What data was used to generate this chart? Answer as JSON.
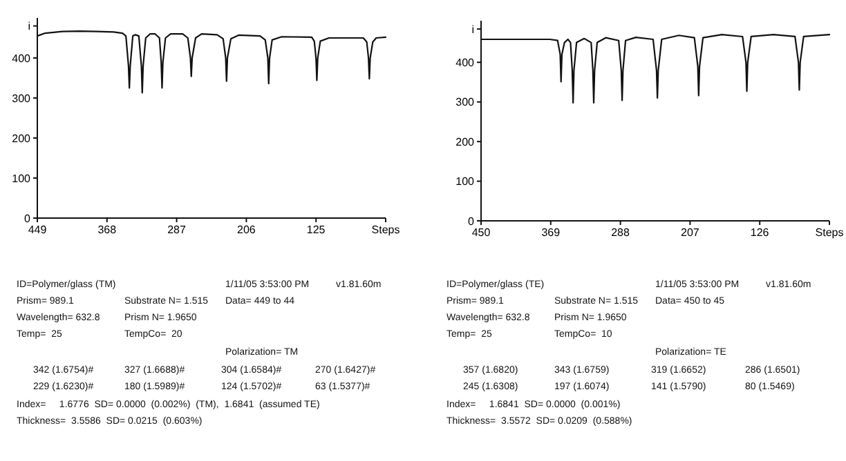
{
  "chart_data": [
    {
      "type": "line",
      "xlim": [
        449,
        44
      ],
      "xticks": [
        449,
        368,
        287,
        206,
        125,
        {
          "value": 44,
          "label": "Steps"
        }
      ],
      "ylim": [
        0,
        500
      ],
      "yticks": [
        0,
        100,
        200,
        300,
        400,
        {
          "value": 480,
          "label": "i"
        }
      ],
      "series": [
        {
          "color": "#111111",
          "x": [
            449,
            440,
            420,
            400,
            380,
            360,
            350,
            346,
            343,
            342,
            341,
            338,
            335,
            331,
            328,
            327,
            326,
            323,
            318,
            312,
            307,
            305,
            304,
            303,
            300,
            294,
            280,
            274,
            271,
            270,
            269,
            265,
            258,
            240,
            233,
            230,
            229,
            228,
            224,
            215,
            190,
            184,
            181,
            180,
            179,
            176,
            165,
            130,
            127,
            125,
            124,
            123,
            120,
            110,
            70,
            66,
            64,
            63,
            62,
            59,
            55,
            44
          ],
          "values": [
            455,
            462,
            466,
            467,
            466,
            465,
            462,
            455,
            380,
            325,
            380,
            455,
            458,
            455,
            380,
            313,
            380,
            450,
            460,
            460,
            450,
            390,
            325,
            390,
            450,
            460,
            460,
            450,
            400,
            354,
            400,
            450,
            460,
            458,
            448,
            400,
            342,
            400,
            448,
            457,
            455,
            445,
            400,
            336,
            400,
            445,
            453,
            452,
            442,
            400,
            344,
            400,
            442,
            450,
            450,
            440,
            400,
            348,
            400,
            440,
            450,
            452
          ]
        }
      ],
      "annotations": [
        "ID=Polymer/glass (TM)",
        "1/11/05 3:53:00 PM",
        "v1.81.60m",
        "Prism= 989.1",
        "Substrate N= 1.515",
        "Data= 449 to 44",
        "Wavelength= 632.8",
        "Prism N= 1.9650",
        "Temp=  25",
        "TempCo=  20",
        "Polarization= TM",
        "342 (1.6754)#",
        "327 (1.6688)#",
        "304 (1.6584)#",
        "270 (1.6427)#",
        "229 (1.6230)#",
        "180 (1.5989)#",
        "124 (1.5702)#",
        "63 (1.5377)#",
        "Index=     1.6776  SD= 0.0000  (0.002%)  (TM),  1.6841  (assumed TE)",
        "Thickness=  3.5586  SD= 0.0215  (0.603%)"
      ]
    },
    {
      "type": "line",
      "xlim": [
        450,
        45
      ],
      "xticks": [
        450,
        369,
        288,
        207,
        126,
        {
          "value": 45,
          "label": "Steps"
        }
      ],
      "ylim": [
        0,
        505
      ],
      "yticks": [
        0,
        100,
        200,
        300,
        400,
        {
          "value": 484,
          "label": "i"
        }
      ],
      "series": [
        {
          "color": "#111111",
          "x": [
            450,
            370,
            361,
            358,
            357,
            356,
            353,
            349,
            346,
            344,
            343,
            342,
            339,
            330,
            322,
            320,
            319,
            318,
            315,
            305,
            290,
            287,
            286,
            285,
            282,
            270,
            250,
            246,
            245,
            244,
            240,
            220,
            202,
            198,
            197,
            196,
            192,
            170,
            146,
            142,
            141,
            140,
            136,
            110,
            85,
            81,
            80,
            79,
            75,
            45
          ],
          "values": [
            458,
            458,
            455,
            420,
            351,
            420,
            450,
            458,
            450,
            380,
            298,
            380,
            450,
            460,
            450,
            380,
            298,
            380,
            450,
            462,
            455,
            380,
            304,
            380,
            455,
            463,
            458,
            380,
            310,
            380,
            458,
            468,
            462,
            390,
            316,
            390,
            462,
            470,
            465,
            400,
            327,
            400,
            465,
            470,
            465,
            400,
            330,
            400,
            465,
            470
          ]
        }
      ],
      "annotations": [
        "ID=Polymer/glass (TE)",
        "1/11/05 3:53:00 PM",
        "v1.81.60m",
        "Prism= 989.1",
        "Substrate N= 1.515",
        "Data= 450 to 45",
        "Wavelength= 632.8",
        "Prism N= 1.9650",
        "Temp=  25",
        "TempCo=  10",
        "Polarization= TE",
        "357 (1.6820)",
        "343 (1.6759)",
        "319 (1.6652)",
        "286 (1.6501)",
        "245 (1.6308)",
        "197 (1.6074)",
        "141 (1.5790)",
        "80 (1.5469)",
        "Index=     1.6841  SD= 0.0000  (0.001%)",
        "Thickness=  3.5572  SD= 0.0209  (0.588%)"
      ]
    }
  ]
}
